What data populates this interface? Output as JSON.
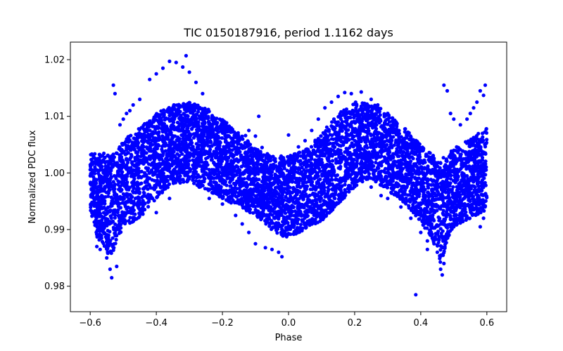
{
  "chart_data": {
    "type": "scatter",
    "title": "TIC 0150187916, period 1.1162 days",
    "xlabel": "Phase",
    "ylabel": "Normalized PDC flux",
    "xlim": [
      -0.66,
      0.66
    ],
    "ylim": [
      0.9755,
      1.0231
    ],
    "xticks": [
      -0.6,
      -0.4,
      -0.2,
      0.0,
      0.2,
      0.4,
      0.6
    ],
    "xtick_labels": [
      "−0.6",
      "−0.4",
      "−0.2",
      "0.0",
      "0.2",
      "0.4",
      "0.6"
    ],
    "yticks": [
      0.98,
      0.99,
      1.0,
      1.01,
      1.02
    ],
    "ytick_labels": [
      "0.98",
      "0.99",
      "1.00",
      "1.01",
      "1.02"
    ],
    "grid": false,
    "marker_color": "#0000ff",
    "x_range_of_points": [
      -0.6,
      0.6
    ],
    "envelope": {
      "x": [
        -0.6,
        -0.58,
        -0.56,
        -0.54,
        -0.52,
        -0.5,
        -0.45,
        -0.4,
        -0.35,
        -0.3,
        -0.25,
        -0.2,
        -0.15,
        -0.1,
        -0.05,
        0.0,
        0.05,
        0.1,
        0.15,
        0.2,
        0.25,
        0.3,
        0.35,
        0.4,
        0.44,
        0.46,
        0.48,
        0.5,
        0.55,
        0.6
      ],
      "upper": [
        1.0035,
        1.0035,
        1.0035,
        1.003,
        1.004,
        1.006,
        1.008,
        1.0105,
        1.012,
        1.0125,
        1.0115,
        1.0095,
        1.007,
        1.0045,
        1.003,
        1.003,
        1.004,
        1.007,
        1.0105,
        1.0125,
        1.0125,
        1.0105,
        1.008,
        1.005,
        1.003,
        1.0025,
        1.003,
        1.0045,
        1.006,
        1.008
      ],
      "lower": [
        0.9935,
        0.9885,
        0.9875,
        0.9845,
        0.988,
        0.9905,
        0.992,
        0.9955,
        0.998,
        0.9985,
        0.997,
        0.9955,
        0.994,
        0.9925,
        0.9895,
        0.9885,
        0.99,
        0.9915,
        0.9945,
        0.9975,
        0.999,
        0.997,
        0.9945,
        0.9915,
        0.9875,
        0.984,
        0.9875,
        0.9905,
        0.992,
        0.9935
      ]
    },
    "outliers": [
      [
        -0.53,
        1.0155
      ],
      [
        -0.525,
        1.014
      ],
      [
        -0.51,
        1.0085
      ],
      [
        -0.5,
        1.0095
      ],
      [
        -0.49,
        1.0105
      ],
      [
        -0.48,
        1.011
      ],
      [
        -0.47,
        1.012
      ],
      [
        -0.45,
        1.013
      ],
      [
        -0.42,
        1.0165
      ],
      [
        -0.4,
        1.0175
      ],
      [
        -0.38,
        1.0185
      ],
      [
        -0.36,
        1.0197
      ],
      [
        -0.34,
        1.0195
      ],
      [
        -0.32,
        1.0187
      ],
      [
        -0.31,
        1.0207
      ],
      [
        -0.3,
        1.0178
      ],
      [
        -0.28,
        1.016
      ],
      [
        -0.26,
        1.014
      ],
      [
        -0.36,
        0.9955
      ],
      [
        -0.4,
        0.993
      ],
      [
        -0.45,
        0.9935
      ],
      [
        -0.48,
        0.995
      ],
      [
        -0.27,
        0.9975
      ],
      [
        -0.24,
        0.9955
      ],
      [
        -0.2,
        0.9945
      ],
      [
        -0.16,
        0.9925
      ],
      [
        -0.14,
        0.991
      ],
      [
        -0.12,
        0.9895
      ],
      [
        -0.1,
        0.9875
      ],
      [
        -0.07,
        0.9868
      ],
      [
        -0.05,
        0.9865
      ],
      [
        -0.03,
        0.986
      ],
      [
        -0.02,
        0.9852
      ],
      [
        -0.12,
        1.0075
      ],
      [
        -0.13,
        1.0066
      ],
      [
        -0.1,
        1.0065
      ],
      [
        -0.08,
        1.0045
      ],
      [
        -0.09,
        1.01
      ],
      [
        0.0,
        1.0067
      ],
      [
        0.03,
        1.0046
      ],
      [
        0.05,
        1.0057
      ],
      [
        0.07,
        1.0075
      ],
      [
        0.09,
        1.0095
      ],
      [
        0.11,
        1.0115
      ],
      [
        0.13,
        1.0125
      ],
      [
        0.15,
        1.0135
      ],
      [
        0.17,
        1.0142
      ],
      [
        0.19,
        1.014
      ],
      [
        0.22,
        1.0143
      ],
      [
        0.25,
        1.013
      ],
      [
        0.27,
        1.012
      ],
      [
        0.3,
        1.0105
      ],
      [
        0.08,
        0.9925
      ],
      [
        0.1,
        0.9935
      ],
      [
        0.12,
        0.9945
      ],
      [
        0.14,
        0.9955
      ],
      [
        0.16,
        0.9965
      ],
      [
        0.18,
        0.9973
      ],
      [
        0.2,
        0.998
      ],
      [
        0.25,
        0.9975
      ],
      [
        0.28,
        0.996
      ],
      [
        0.3,
        0.9955
      ],
      [
        0.34,
        0.994
      ],
      [
        0.37,
        0.992
      ],
      [
        0.4,
        0.9895
      ],
      [
        0.42,
        0.988
      ],
      [
        0.385,
        0.9785
      ],
      [
        0.47,
        1.0155
      ],
      [
        0.48,
        1.0145
      ],
      [
        0.49,
        1.0105
      ],
      [
        0.5,
        1.0095
      ],
      [
        0.52,
        1.0085
      ],
      [
        0.54,
        1.0095
      ],
      [
        0.55,
        1.0105
      ],
      [
        0.56,
        1.0115
      ],
      [
        0.57,
        1.0125
      ],
      [
        0.58,
        1.0145
      ],
      [
        0.595,
        1.0155
      ],
      [
        0.59,
        1.0137
      ],
      [
        0.56,
        0.9935
      ],
      [
        0.53,
        0.9925
      ],
      [
        0.5,
        0.9905
      ],
      [
        0.58,
        0.9905
      ],
      [
        0.59,
        0.992
      ],
      [
        -0.55,
        0.985
      ],
      [
        -0.54,
        0.983
      ],
      [
        -0.535,
        0.9815
      ],
      [
        -0.52,
        0.9835
      ],
      [
        0.46,
        0.983
      ],
      [
        0.465,
        0.982
      ],
      [
        0.47,
        0.984
      ],
      [
        0.45,
        0.986
      ],
      [
        0.44,
        0.9875
      ],
      [
        0.42,
        0.9865
      ],
      [
        -0.58,
        0.987
      ],
      [
        -0.57,
        0.9865
      ]
    ]
  }
}
